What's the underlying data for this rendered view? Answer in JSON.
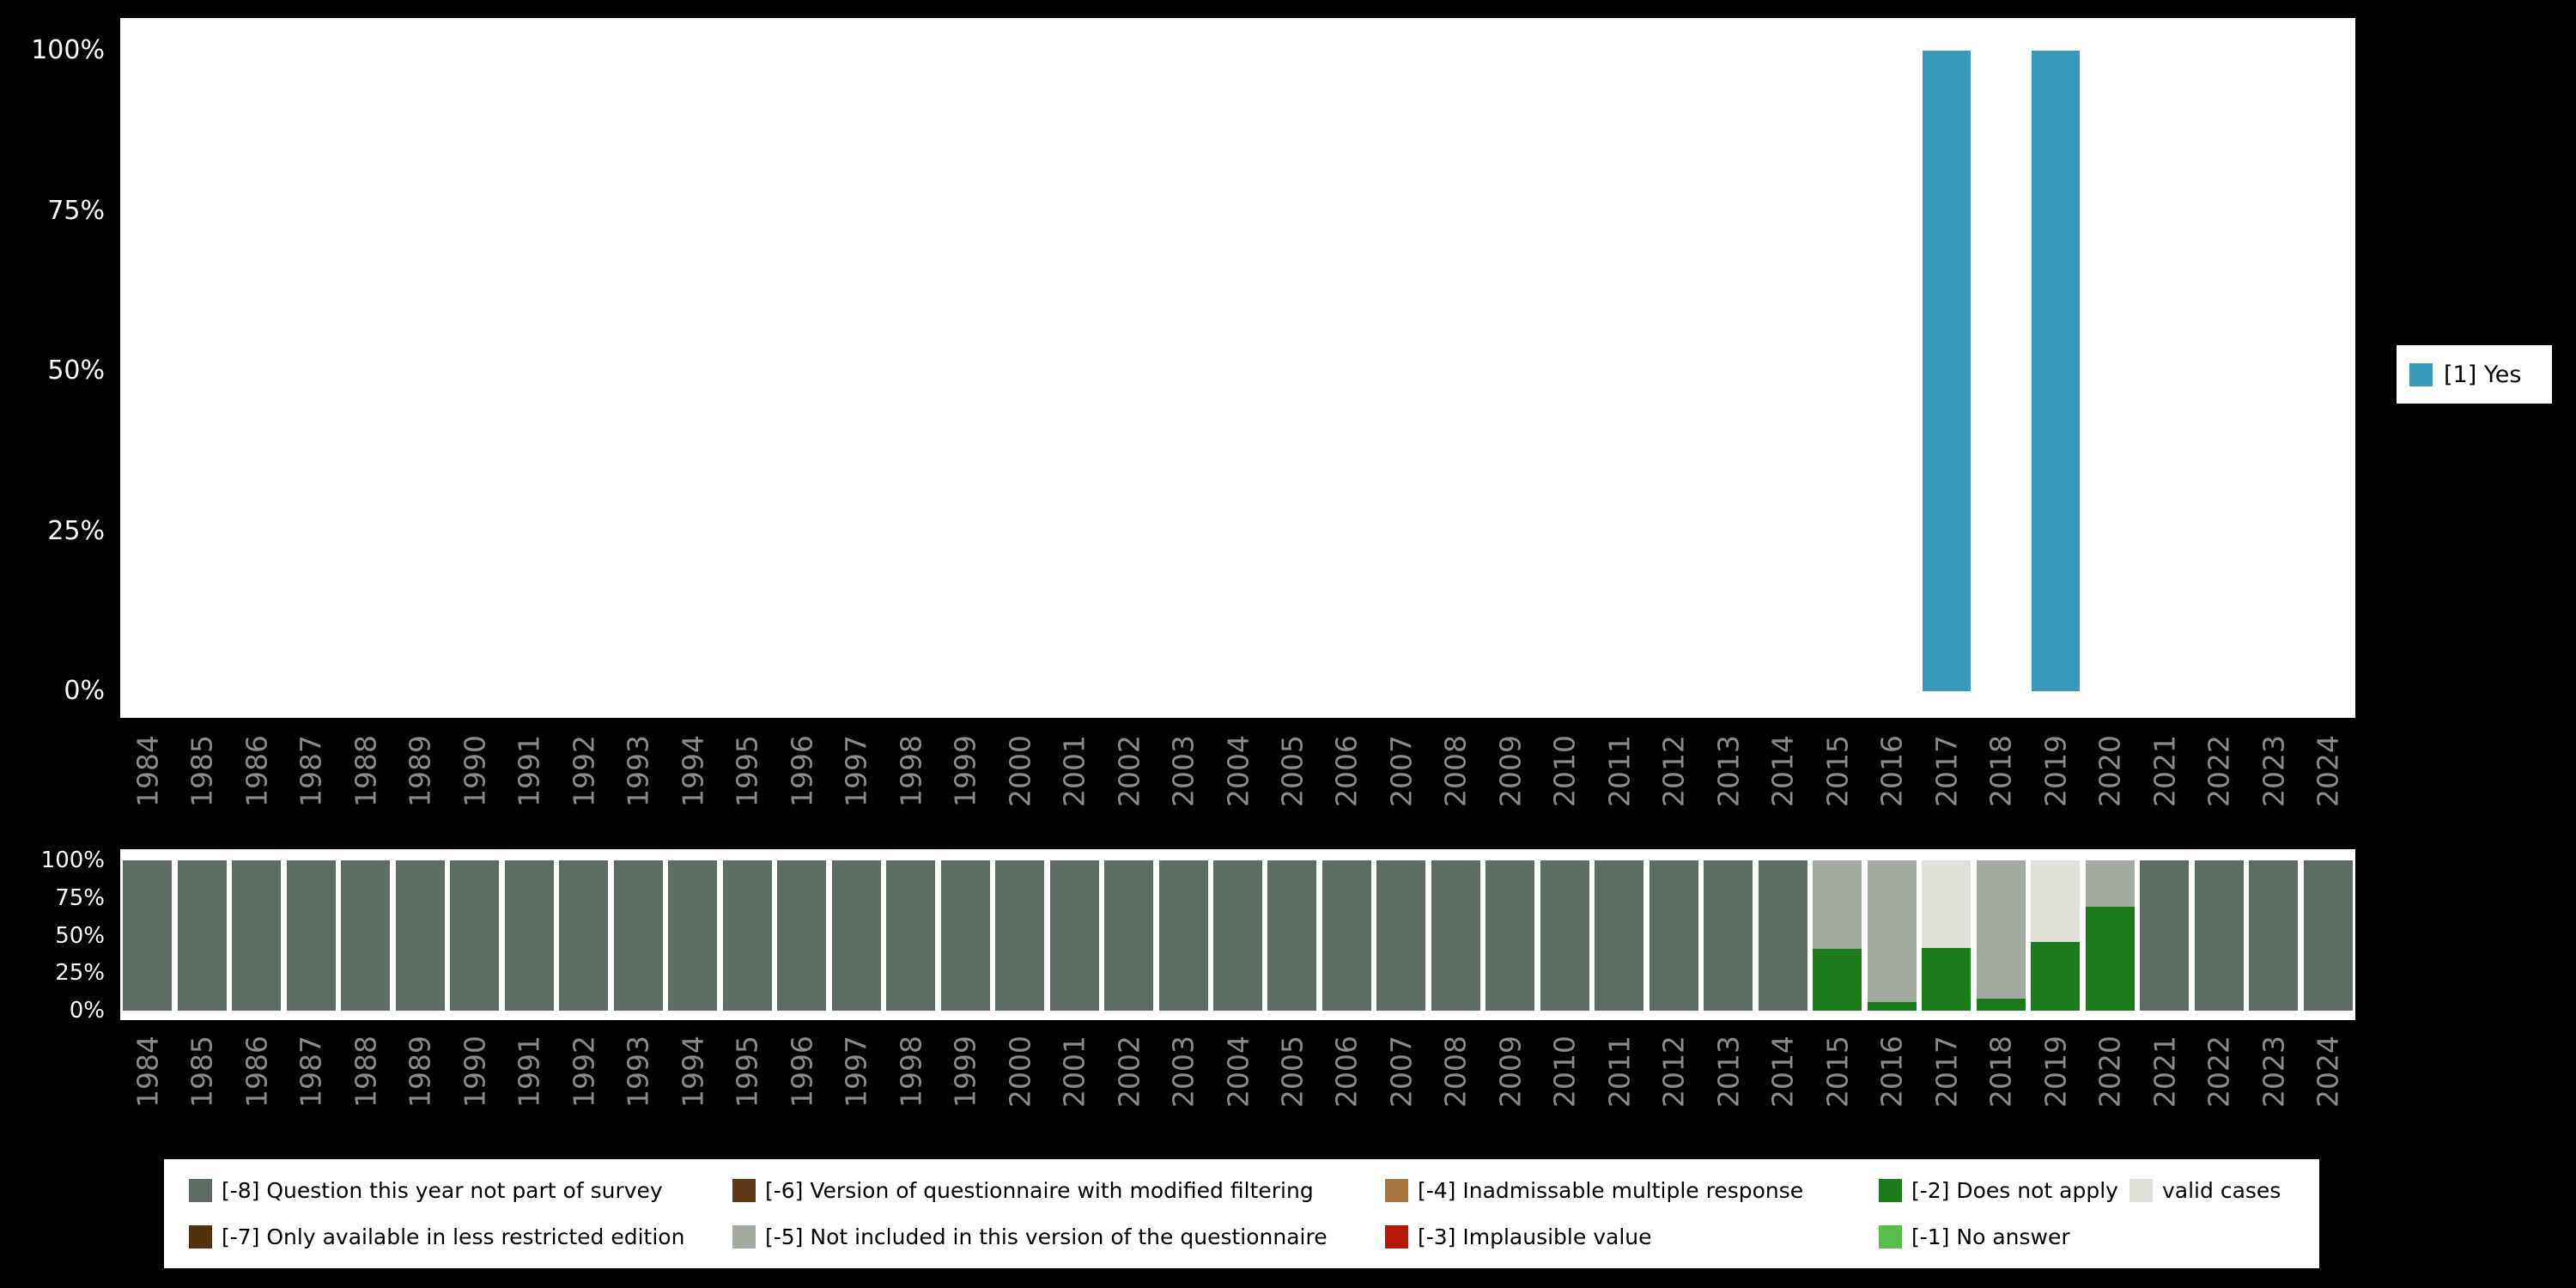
{
  "style": {
    "page_background": "#000000",
    "plot_background": "#ffffff",
    "axis_tick_color": "#ffffff",
    "year_label_color": "#8a8a8a"
  },
  "top_legend": {
    "items": [
      {
        "label": "[1] Yes",
        "color": "#3a9ab9"
      }
    ]
  },
  "bottom_legend": {
    "rows": [
      [
        {
          "label": "[-8] Question this year not part of survey",
          "color": "#5d6d63"
        },
        {
          "label": "[-6] Version of questionnaire with modified filtering",
          "color": "#5e3a17"
        },
        {
          "label": "[-4] Inadmissable multiple response",
          "color": "#a5773f"
        },
        {
          "label": "[-2] Does not apply",
          "color": "#1c7c1c"
        },
        {
          "label": "valid cases",
          "color": "#e0dfd8"
        }
      ],
      [
        {
          "label": "[-7] Only available in less restricted edition",
          "color": "#53300e"
        },
        {
          "label": "[-5] Not included in this version of the questionnaire",
          "color": "#a3aaa0"
        },
        {
          "label": "[-3] Implausible value",
          "color": "#b51807"
        },
        {
          "label": "[-1] No answer",
          "color": "#59bf4a"
        }
      ]
    ]
  },
  "chart_data": [
    {
      "id": "value-distribution",
      "type": "bar",
      "title": "",
      "xlabel": "",
      "ylabel": "",
      "ylim": [
        0,
        100
      ],
      "yticks": [
        "100%",
        "75%",
        "50%",
        "25%",
        "0%"
      ],
      "x_tick_rotation": -90,
      "grid": false,
      "legend_position": "right",
      "categories": [
        "1984",
        "1985",
        "1986",
        "1987",
        "1988",
        "1989",
        "1990",
        "1991",
        "1992",
        "1993",
        "1994",
        "1995",
        "1996",
        "1997",
        "1998",
        "1999",
        "2000",
        "2001",
        "2002",
        "2003",
        "2004",
        "2005",
        "2006",
        "2007",
        "2008",
        "2009",
        "2010",
        "2011",
        "2012",
        "2013",
        "2014",
        "2015",
        "2016",
        "2017",
        "2018",
        "2019",
        "2020",
        "2021",
        "2022",
        "2023",
        "2024"
      ],
      "series": [
        {
          "name": "[1] Yes",
          "color": "#3a9ab9",
          "values": [
            0,
            0,
            0,
            0,
            0,
            0,
            0,
            0,
            0,
            0,
            0,
            0,
            0,
            0,
            0,
            0,
            0,
            0,
            0,
            0,
            0,
            0,
            0,
            0,
            0,
            0,
            0,
            0,
            0,
            0,
            0,
            0,
            0,
            100,
            0,
            100,
            0,
            0,
            0,
            0,
            0
          ]
        }
      ]
    },
    {
      "id": "missing-values-distribution",
      "type": "stacked-bar",
      "title": "",
      "xlabel": "",
      "ylabel": "",
      "ylim": [
        0,
        100
      ],
      "yticks": [
        "100%",
        "75%",
        "50%",
        "25%",
        "0%"
      ],
      "x_tick_rotation": -90,
      "grid": false,
      "legend_position": "bottom",
      "categories": [
        "1984",
        "1985",
        "1986",
        "1987",
        "1988",
        "1989",
        "1990",
        "1991",
        "1992",
        "1993",
        "1994",
        "1995",
        "1996",
        "1997",
        "1998",
        "1999",
        "2000",
        "2001",
        "2002",
        "2003",
        "2004",
        "2005",
        "2006",
        "2007",
        "2008",
        "2009",
        "2010",
        "2011",
        "2012",
        "2013",
        "2014",
        "2015",
        "2016",
        "2017",
        "2018",
        "2019",
        "2020",
        "2021",
        "2022",
        "2023",
        "2024"
      ],
      "series": [
        {
          "name": "[-8] Question this year not part of survey",
          "color": "#5d6d63",
          "values": [
            100,
            100,
            100,
            100,
            100,
            100,
            100,
            100,
            100,
            100,
            100,
            100,
            100,
            100,
            100,
            100,
            100,
            100,
            100,
            100,
            100,
            100,
            100,
            100,
            100,
            100,
            100,
            100,
            100,
            100,
            100,
            0,
            0,
            0,
            0,
            0,
            0,
            100,
            100,
            100,
            100
          ]
        },
        {
          "name": "[-2] Does not apply",
          "color": "#1c7c1c",
          "values": [
            0,
            0,
            0,
            0,
            0,
            0,
            0,
            0,
            0,
            0,
            0,
            0,
            0,
            0,
            0,
            0,
            0,
            0,
            0,
            0,
            0,
            0,
            0,
            0,
            0,
            0,
            0,
            0,
            0,
            0,
            0,
            41,
            6,
            42,
            8,
            46,
            69,
            0,
            0,
            0,
            0
          ]
        },
        {
          "name": "[-5] Not included in this version of the questionnaire",
          "color": "#a3aaa0",
          "values": [
            0,
            0,
            0,
            0,
            0,
            0,
            0,
            0,
            0,
            0,
            0,
            0,
            0,
            0,
            0,
            0,
            0,
            0,
            0,
            0,
            0,
            0,
            0,
            0,
            0,
            0,
            0,
            0,
            0,
            0,
            0,
            59,
            94,
            0,
            92,
            0,
            31,
            0,
            0,
            0,
            0
          ]
        },
        {
          "name": "valid cases",
          "color": "#e0dfd8",
          "values": [
            0,
            0,
            0,
            0,
            0,
            0,
            0,
            0,
            0,
            0,
            0,
            0,
            0,
            0,
            0,
            0,
            0,
            0,
            0,
            0,
            0,
            0,
            0,
            0,
            0,
            0,
            0,
            0,
            0,
            0,
            0,
            0,
            0,
            58,
            0,
            54,
            0,
            0,
            0,
            0,
            0
          ]
        }
      ]
    }
  ]
}
